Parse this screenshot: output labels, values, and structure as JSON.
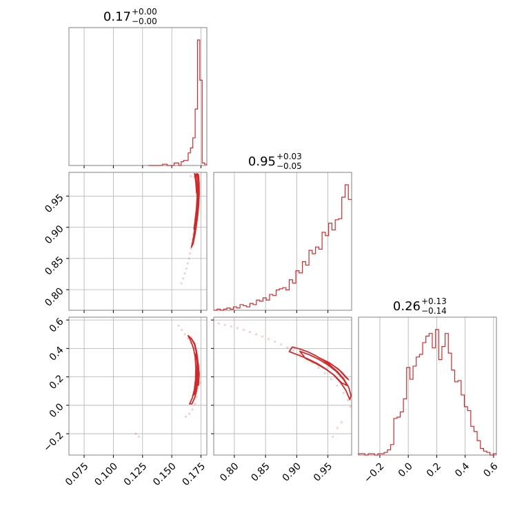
{
  "colors": {
    "accent": "#d62728",
    "grid": "#b0b0b0",
    "frame": "#808080"
  },
  "chart_data": [
    {
      "type": "histogram",
      "param_index": 0,
      "title": {
        "value": "0.17",
        "upper": "+0.00",
        "lower": "−0.00"
      },
      "xlim": [
        0.062,
        0.18
      ],
      "bins": {
        "start": 0.13,
        "end": 0.18,
        "counts": [
          0,
          0,
          0,
          0,
          0,
          0,
          1,
          1,
          0,
          0,
          0,
          2,
          2,
          0,
          3,
          4,
          4,
          10,
          14,
          22,
          45,
          100,
          68,
          2,
          1
        ]
      },
      "grid": true
    },
    {
      "type": "histogram",
      "param_index": 1,
      "title": {
        "value": "0.95",
        "upper": "+0.03",
        "lower": "−0.05"
      },
      "xlim": [
        0.767,
        0.988
      ],
      "bins": {
        "start": 0.767,
        "end": 0.988,
        "counts": [
          0,
          1,
          0,
          1,
          2,
          1,
          3,
          2,
          5,
          4,
          3,
          6,
          5,
          9,
          8,
          11,
          9,
          14,
          13,
          18,
          19,
          20,
          18,
          27,
          24,
          35,
          33,
          43,
          40,
          53,
          50,
          56,
          54,
          69,
          66,
          77,
          71,
          80,
          81,
          100,
          111,
          98
        ]
      },
      "grid": true
    },
    {
      "type": "histogram",
      "param_index": 2,
      "title": {
        "value": "0.26",
        "upper": "+0.13",
        "lower": "−0.14"
      },
      "xlim": [
        -0.35,
        0.62
      ],
      "xticks": [
        -0.2,
        0.0,
        0.2,
        0.4,
        0.6
      ],
      "xticklabels": [
        "−0.2",
        "0.0",
        "0.2",
        "0.4",
        "0.6"
      ],
      "bins": {
        "start": -0.35,
        "end": 0.62,
        "counts": [
          1,
          1,
          0,
          1,
          1,
          0,
          1,
          1,
          2,
          4,
          8,
          28,
          29,
          33,
          43,
          67,
          58,
          68,
          75,
          77,
          86,
          91,
          93,
          82,
          96,
          73,
          83,
          93,
          78,
          65,
          56,
          57,
          46,
          37,
          34,
          22,
          18,
          11,
          5,
          3,
          2,
          0,
          1
        ]
      },
      "grid": true
    },
    {
      "type": "scatter",
      "description_key": "joint-1-0",
      "x_param": 0,
      "y_param": 1,
      "xlim": [
        0.062,
        0.18
      ],
      "ylim": [
        0.767,
        0.988
      ],
      "yticks": [
        0.8,
        0.85,
        0.9,
        0.95
      ],
      "yticklabels": [
        "0.80",
        "0.85",
        "0.90",
        "0.95"
      ],
      "points": [
        [
          0.1705,
          0.983
        ],
        [
          0.1712,
          0.977
        ],
        [
          0.1718,
          0.97
        ],
        [
          0.1722,
          0.962
        ],
        [
          0.1726,
          0.954
        ],
        [
          0.1724,
          0.946
        ],
        [
          0.1721,
          0.937
        ],
        [
          0.1716,
          0.929
        ],
        [
          0.1711,
          0.921
        ],
        [
          0.1706,
          0.913
        ],
        [
          0.1699,
          0.905
        ],
        [
          0.1692,
          0.897
        ],
        [
          0.1685,
          0.889
        ],
        [
          0.1678,
          0.881
        ],
        [
          0.1671,
          0.874
        ],
        [
          0.1664,
          0.866
        ],
        [
          0.1656,
          0.858
        ],
        [
          0.1648,
          0.85
        ],
        [
          0.1637,
          0.842
        ],
        [
          0.1626,
          0.834
        ],
        [
          0.1612,
          0.826
        ],
        [
          0.1597,
          0.818
        ],
        [
          0.1582,
          0.81
        ],
        [
          0.1662,
          0.982
        ],
        [
          0.169,
          0.981
        ]
      ],
      "contours": [
        [
          [
            0.17,
            0.985
          ],
          [
            0.1712,
            0.975
          ],
          [
            0.172,
            0.962
          ],
          [
            0.1723,
            0.948
          ],
          [
            0.172,
            0.933
          ],
          [
            0.1712,
            0.918
          ],
          [
            0.1701,
            0.903
          ],
          [
            0.1689,
            0.888
          ],
          [
            0.1677,
            0.875
          ],
          [
            0.1668,
            0.868
          ],
          [
            0.1683,
            0.874
          ],
          [
            0.1699,
            0.889
          ],
          [
            0.1712,
            0.905
          ],
          [
            0.1723,
            0.921
          ],
          [
            0.1731,
            0.938
          ],
          [
            0.1735,
            0.955
          ],
          [
            0.1734,
            0.971
          ],
          [
            0.1728,
            0.985
          ]
        ],
        [
          [
            0.1707,
            0.981
          ],
          [
            0.1716,
            0.966
          ],
          [
            0.1717,
            0.948
          ],
          [
            0.1711,
            0.93
          ],
          [
            0.17,
            0.912
          ],
          [
            0.169,
            0.897
          ],
          [
            0.1702,
            0.905
          ],
          [
            0.1715,
            0.923
          ],
          [
            0.1724,
            0.941
          ],
          [
            0.1727,
            0.959
          ],
          [
            0.1724,
            0.975
          ],
          [
            0.1716,
            0.986
          ]
        ],
        [
          [
            0.1695,
            0.986
          ],
          [
            0.1706,
            0.972
          ],
          [
            0.1711,
            0.957
          ],
          [
            0.1724,
            0.946
          ],
          [
            0.1731,
            0.962
          ],
          [
            0.1727,
            0.979
          ]
        ]
      ]
    },
    {
      "type": "scatter",
      "description_key": "joint-2-0",
      "x_param": 0,
      "y_param": 2,
      "xlim": [
        0.062,
        0.18
      ],
      "ylim": [
        -0.35,
        0.62
      ],
      "xticks": [
        0.075,
        0.1,
        0.125,
        0.15,
        0.175
      ],
      "xticklabels": [
        "0.075",
        "0.100",
        "0.125",
        "0.150",
        "0.175"
      ],
      "yticks": [
        -0.2,
        0.0,
        0.2,
        0.4,
        0.6
      ],
      "yticklabels": [
        "−0.2",
        "0.0",
        "0.2",
        "0.4",
        "0.6"
      ],
      "points": [
        [
          0.1558,
          0.56
        ],
        [
          0.1585,
          0.53
        ],
        [
          0.1612,
          0.5
        ],
        [
          0.1638,
          0.47
        ],
        [
          0.1662,
          0.44
        ],
        [
          0.1686,
          0.4
        ],
        [
          0.1705,
          0.35
        ],
        [
          0.1718,
          0.3
        ],
        [
          0.1726,
          0.24
        ],
        [
          0.1728,
          0.18
        ],
        [
          0.1722,
          0.12
        ],
        [
          0.1712,
          0.06
        ],
        [
          0.1698,
          0.01
        ],
        [
          0.1676,
          -0.03
        ],
        [
          0.165,
          -0.06
        ],
        [
          0.162,
          -0.08
        ],
        [
          0.1218,
          -0.22
        ],
        [
          0.1192,
          -0.2
        ],
        [
          0.1745,
          0.16
        ],
        [
          0.1735,
          0.28
        ]
      ],
      "contours": [
        [
          [
            0.164,
            0.49
          ],
          [
            0.1668,
            0.47
          ],
          [
            0.1694,
            0.43
          ],
          [
            0.1712,
            0.38
          ],
          [
            0.1722,
            0.32
          ],
          [
            0.1726,
            0.25
          ],
          [
            0.1722,
            0.17
          ],
          [
            0.1712,
            0.1
          ],
          [
            0.1695,
            0.05
          ],
          [
            0.1672,
            0.01
          ],
          [
            0.1652,
            0.01
          ],
          [
            0.1675,
            0.05
          ],
          [
            0.1693,
            0.11
          ],
          [
            0.1703,
            0.18
          ],
          [
            0.1706,
            0.26
          ],
          [
            0.17,
            0.34
          ],
          [
            0.1686,
            0.4
          ],
          [
            0.1664,
            0.45
          ]
        ],
        [
          [
            0.1665,
            0.47
          ],
          [
            0.1692,
            0.44
          ],
          [
            0.1708,
            0.38
          ],
          [
            0.1716,
            0.3
          ],
          [
            0.1716,
            0.22
          ],
          [
            0.171,
            0.14
          ],
          [
            0.1696,
            0.08
          ],
          [
            0.1684,
            0.07
          ],
          [
            0.17,
            0.13
          ],
          [
            0.1712,
            0.21
          ],
          [
            0.1718,
            0.29
          ],
          [
            0.1713,
            0.37
          ],
          [
            0.1698,
            0.43
          ]
        ],
        [
          [
            0.17,
            0.36
          ],
          [
            0.1725,
            0.3
          ],
          [
            0.1735,
            0.22
          ],
          [
            0.1728,
            0.14
          ],
          [
            0.1722,
            0.22
          ],
          [
            0.1716,
            0.31
          ]
        ]
      ]
    },
    {
      "type": "scatter",
      "description_key": "joint-2-1",
      "x_param": 1,
      "y_param": 2,
      "xlim": [
        0.767,
        0.988
      ],
      "ylim": [
        -0.35,
        0.62
      ],
      "xticks": [
        0.8,
        0.85,
        0.9,
        0.95
      ],
      "xticklabels": [
        "0.80",
        "0.85",
        "0.90",
        "0.95"
      ],
      "points": [
        [
          0.775,
          0.575
        ],
        [
          0.785,
          0.565
        ],
        [
          0.795,
          0.555
        ],
        [
          0.805,
          0.543
        ],
        [
          0.815,
          0.53
        ],
        [
          0.825,
          0.516
        ],
        [
          0.835,
          0.5
        ],
        [
          0.845,
          0.484
        ],
        [
          0.855,
          0.466
        ],
        [
          0.865,
          0.447
        ],
        [
          0.875,
          0.428
        ],
        [
          0.885,
          0.407
        ],
        [
          0.895,
          0.384
        ],
        [
          0.905,
          0.358
        ],
        [
          0.915,
          0.33
        ],
        [
          0.925,
          0.298
        ],
        [
          0.935,
          0.264
        ],
        [
          0.945,
          0.226
        ],
        [
          0.955,
          0.184
        ],
        [
          0.965,
          0.138
        ],
        [
          0.975,
          0.086
        ],
        [
          0.982,
          0.036
        ],
        [
          0.986,
          -0.01
        ],
        [
          0.972,
          -0.12
        ],
        [
          0.965,
          -0.16
        ],
        [
          0.958,
          -0.22
        ]
      ],
      "contours": [
        [
          [
            0.893,
            0.41
          ],
          [
            0.905,
            0.396
          ],
          [
            0.918,
            0.376
          ],
          [
            0.93,
            0.35
          ],
          [
            0.942,
            0.318
          ],
          [
            0.954,
            0.28
          ],
          [
            0.965,
            0.238
          ],
          [
            0.975,
            0.188
          ],
          [
            0.983,
            0.13
          ],
          [
            0.987,
            0.07
          ],
          [
            0.985,
            0.04
          ],
          [
            0.979,
            0.104
          ],
          [
            0.97,
            0.162
          ],
          [
            0.959,
            0.214
          ],
          [
            0.946,
            0.258
          ],
          [
            0.932,
            0.296
          ],
          [
            0.917,
            0.328
          ],
          [
            0.902,
            0.354
          ],
          [
            0.888,
            0.378
          ]
        ],
        [
          [
            0.905,
            0.38
          ],
          [
            0.92,
            0.356
          ],
          [
            0.935,
            0.324
          ],
          [
            0.95,
            0.284
          ],
          [
            0.963,
            0.24
          ],
          [
            0.975,
            0.182
          ],
          [
            0.981,
            0.138
          ],
          [
            0.972,
            0.158
          ],
          [
            0.96,
            0.212
          ],
          [
            0.946,
            0.256
          ],
          [
            0.93,
            0.296
          ],
          [
            0.914,
            0.33
          ]
        ],
        [
          [
            0.935,
            0.336
          ],
          [
            0.952,
            0.3
          ],
          [
            0.967,
            0.254
          ],
          [
            0.979,
            0.196
          ],
          [
            0.983,
            0.18
          ],
          [
            0.972,
            0.234
          ],
          [
            0.958,
            0.282
          ]
        ]
      ]
    }
  ]
}
